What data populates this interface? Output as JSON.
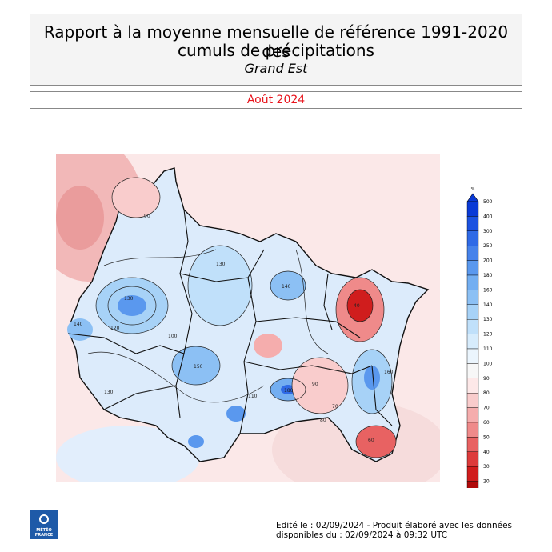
{
  "header": {
    "title_line1": "Rapport à la moyenne mensuelle de référence 1991-2020 des",
    "title_line2": "cumuls de précipitations",
    "region": "Grand Est",
    "period": "Août 2024"
  },
  "colors": {
    "period_text": "#e8141c",
    "map_low": "#c4121a",
    "map_mid": "#f5f5f5",
    "map_high": "#1a4fd8",
    "logo_bg": "#1e5aa8"
  },
  "legend": {
    "unit": "%",
    "ticks": [
      "500",
      "400",
      "300",
      "250",
      "200",
      "180",
      "160",
      "140",
      "130",
      "120",
      "110",
      "100",
      "90",
      "80",
      "70",
      "60",
      "50",
      "40",
      "30",
      "20"
    ],
    "colors": [
      "#0a3ad6",
      "#1c52e0",
      "#2f6ae6",
      "#4682ea",
      "#5a98ee",
      "#73aef1",
      "#8cc0f4",
      "#a7d2f7",
      "#c0e0fa",
      "#d7ecfc",
      "#ebf5fd",
      "#f7f7f7",
      "#fde8e8",
      "#f9cccc",
      "#f5adad",
      "#ef8a8a",
      "#e86262",
      "#dd3b3b",
      "#d01d1d",
      "#b00a0a"
    ]
  },
  "map": {
    "contour_labels": [
      "130",
      "140",
      "120",
      "110",
      "90",
      "80",
      "70",
      "60",
      "40",
      "160",
      "150",
      "180",
      "100"
    ]
  },
  "logo": {
    "icon": "meteo-france-logo",
    "text_line1": "MÉTÉO",
    "text_line2": "FRANCE"
  },
  "footer": {
    "line1": "Edité le : 02/09/2024 - Produit élaboré avec les données",
    "line2": "disponibles du : 02/09/2024 à 09:32 UTC"
  }
}
